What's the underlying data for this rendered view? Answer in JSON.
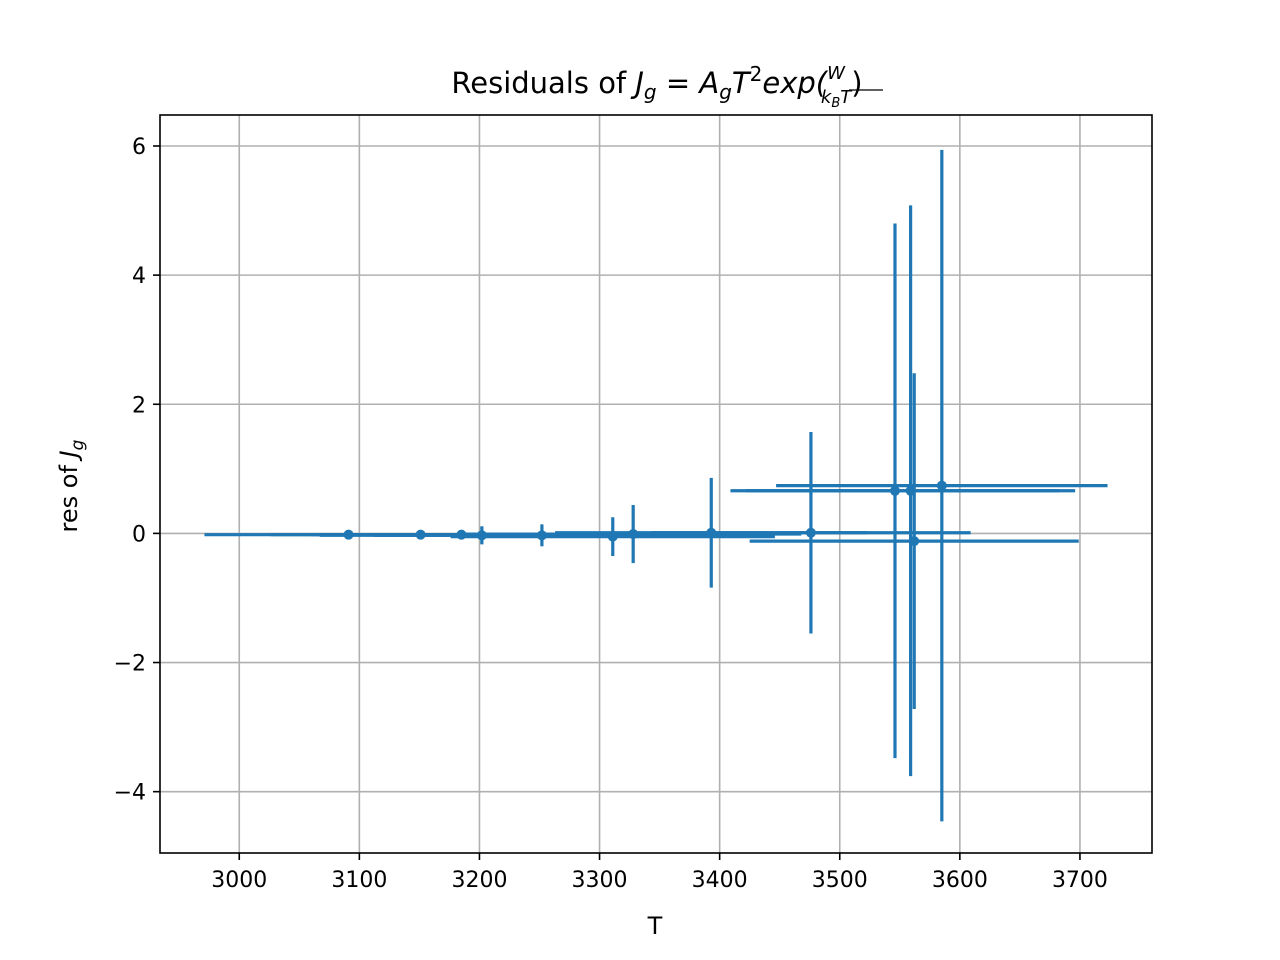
{
  "chart_data": {
    "type": "scatter",
    "title_parts": [
      "Residuals of ",
      "J",
      "g",
      " = ",
      "A",
      "g",
      "T",
      "2",
      "exp(",
      "W",
      "k",
      "B",
      "T",
      ")"
    ],
    "xlabel": "T",
    "ylabel_parts": [
      "res of ",
      "J",
      "g"
    ],
    "xlim": [
      2934,
      3760
    ],
    "ylim": [
      -4.95,
      6.48
    ],
    "xticks": [
      3000,
      3100,
      3200,
      3300,
      3400,
      3500,
      3600,
      3700
    ],
    "xtick_labels": [
      "3000",
      "3100",
      "3200",
      "3300",
      "3400",
      "3500",
      "3600",
      "3700"
    ],
    "yticks": [
      -4,
      -2,
      0,
      2,
      4,
      6
    ],
    "ytick_labels": [
      "−4",
      "−2",
      "0",
      "2",
      "4",
      "6"
    ],
    "grid": true,
    "color": "#1f77b4",
    "points": [
      {
        "x": 3091,
        "y": -0.02,
        "xerr": 120,
        "yerr": 0.01
      },
      {
        "x": 3151,
        "y": -0.02,
        "xerr": 125,
        "yerr": 0.02
      },
      {
        "x": 3185,
        "y": -0.02,
        "xerr": 125,
        "yerr": 0.03
      },
      {
        "x": 3202,
        "y": -0.03,
        "xerr": 135,
        "yerr": 0.14
      },
      {
        "x": 3252,
        "y": -0.03,
        "xerr": 140,
        "yerr": 0.17
      },
      {
        "x": 3311,
        "y": -0.05,
        "xerr": 135,
        "yerr": 0.3
      },
      {
        "x": 3328,
        "y": -0.01,
        "xerr": 140,
        "yerr": 0.45
      },
      {
        "x": 3393,
        "y": 0.01,
        "xerr": 130,
        "yerr": 0.85
      },
      {
        "x": 3476,
        "y": 0.01,
        "xerr": 133,
        "yerr": 1.56
      },
      {
        "x": 3546,
        "y": 0.66,
        "xerr": 137,
        "yerr": 4.14
      },
      {
        "x": 3559,
        "y": 0.66,
        "xerr": 137,
        "yerr": 4.42
      },
      {
        "x": 3562,
        "y": -0.12,
        "xerr": 137,
        "yerr": 2.6
      },
      {
        "x": 3585,
        "y": 0.74,
        "xerr": 138,
        "yerr": 5.2
      }
    ]
  }
}
